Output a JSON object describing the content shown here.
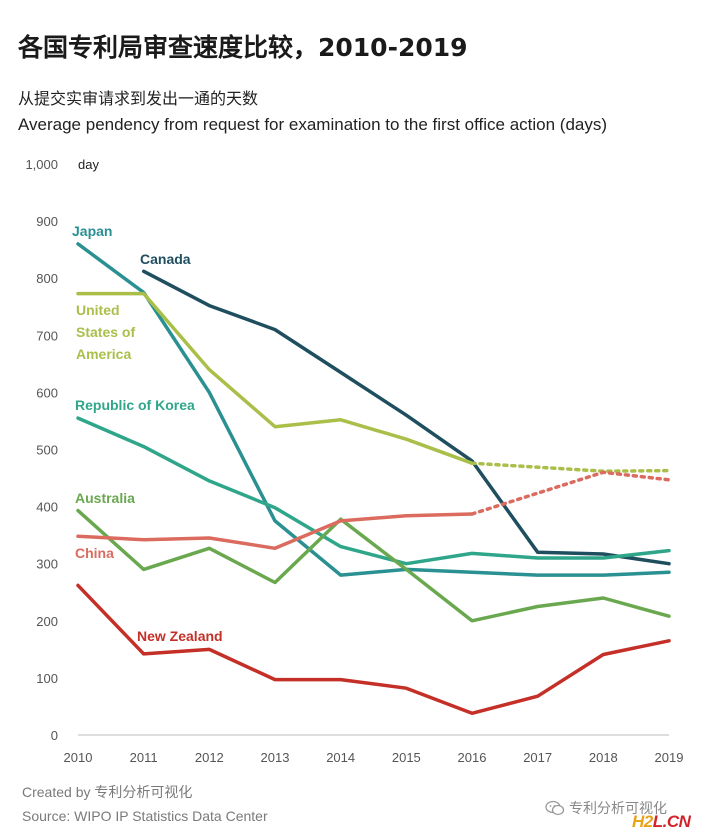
{
  "title": "各国专利局审查速度比较，2010-2019",
  "subtitle_cn": "从提交实审请求到发出一通的天数",
  "subtitle_en": "Average pendency from request for examination to the first office action (days)",
  "footer": {
    "created_by": "Created by 专利分析可视化",
    "source": "Source: WIPO IP Statistics Data Center"
  },
  "watermark": {
    "wechat_text": "专利分析可视化",
    "wechat_icon": "wechat-icon",
    "logo_h2": "H2",
    "logo_l": "L",
    "logo_cn": ".CN"
  },
  "chart_data": {
    "type": "line",
    "ylabel": "day",
    "xlim": [
      2010,
      2019
    ],
    "ylim": [
      0,
      1000
    ],
    "y_ticks": [
      0,
      100,
      200,
      300,
      400,
      500,
      600,
      700,
      800,
      900,
      1000
    ],
    "y_tick_labels": [
      "0",
      "100",
      "200",
      "300",
      "400",
      "500",
      "600",
      "700",
      "800",
      "900",
      "1,000"
    ],
    "x_ticks": [
      2010,
      2011,
      2012,
      2013,
      2014,
      2015,
      2016,
      2017,
      2018,
      2019
    ],
    "x_tick_labels": [
      "2010",
      "2011",
      "2012",
      "2013",
      "2014",
      "2015",
      "2016",
      "2017",
      "2018",
      "2019"
    ],
    "grid": false,
    "legend": "inline labels",
    "series": [
      {
        "name": "Japan",
        "color": "#2a9092",
        "x": [
          2010,
          2011,
          2012,
          2013,
          2014,
          2015,
          2016,
          2017,
          2018,
          2019
        ],
        "values": [
          860,
          775,
          600,
          375,
          280,
          290,
          285,
          280,
          280,
          285
        ]
      },
      {
        "name": "Canada",
        "color": "#1f4e5f",
        "x": [
          2011,
          2012,
          2013,
          2014,
          2015,
          2016,
          2017,
          2018,
          2019
        ],
        "values": [
          812,
          752,
          710,
          635,
          560,
          480,
          320,
          317,
          300
        ]
      },
      {
        "name": "United States of America",
        "label_lines": [
          "United",
          "States of",
          "America"
        ],
        "color": "#a9bf4a",
        "x": [
          2010,
          2011,
          2012,
          2013,
          2014,
          2015,
          2016,
          2018,
          2019
        ],
        "values": [
          773,
          773,
          640,
          540,
          552,
          518,
          476,
          462,
          463
        ],
        "dotted_from": 2016
      },
      {
        "name": "Republic of Korea",
        "color": "#2fa68a",
        "x": [
          2010,
          2011,
          2012,
          2013,
          2014,
          2015,
          2016,
          2017,
          2018,
          2019
        ],
        "values": [
          555,
          505,
          445,
          398,
          330,
          300,
          318,
          310,
          310,
          323
        ]
      },
      {
        "name": "Australia",
        "color": "#6aa84f",
        "x": [
          2010,
          2011,
          2012,
          2013,
          2014,
          2015,
          2016,
          2017,
          2018,
          2019
        ],
        "values": [
          393,
          290,
          327,
          267,
          378,
          290,
          200,
          225,
          240,
          208
        ]
      },
      {
        "name": "China",
        "color": "#db6b5e",
        "x": [
          2010,
          2011,
          2012,
          2013,
          2014,
          2015,
          2016,
          2018,
          2019
        ],
        "values": [
          348,
          342,
          345,
          327,
          375,
          384,
          387,
          460,
          447
        ],
        "dotted_from": 2016
      },
      {
        "name": "New Zealand",
        "color": "#c43027",
        "x": [
          2010,
          2011,
          2012,
          2013,
          2014,
          2015,
          2016,
          2017,
          2018,
          2019
        ],
        "values": [
          262,
          142,
          150,
          97,
          97,
          82,
          38,
          68,
          141,
          165
        ]
      }
    ]
  }
}
